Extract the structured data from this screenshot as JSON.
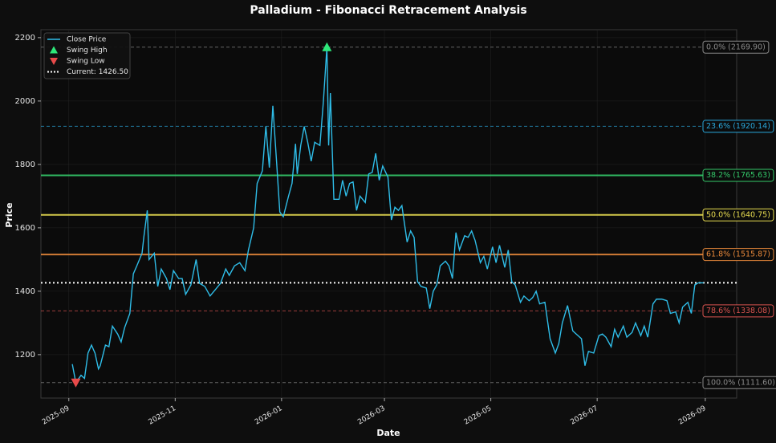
{
  "chart_data": {
    "type": "line",
    "title": "Palladium - Fibonacci Retracement Analysis",
    "x_label": "Date",
    "y_label": "Price",
    "grid": true,
    "legend": "upper left",
    "xlim": [
      "2025-08-16",
      "2026-09-19"
    ],
    "xticks": [
      {
        "value": "2025-09-01",
        "label": "2025-09"
      },
      {
        "value": "2025-11-01",
        "label": "2025-11"
      },
      {
        "value": "2026-01-01",
        "label": "2026-01"
      },
      {
        "value": "2026-03-01",
        "label": "2026-03"
      },
      {
        "value": "2026-05-01",
        "label": "2026-05"
      },
      {
        "value": "2026-07-01",
        "label": "2026-07"
      },
      {
        "value": "2026-09-01",
        "label": "2026-09"
      }
    ],
    "ylim": [
      1063,
      2225
    ],
    "yticks": [
      1200,
      1400,
      1600,
      1800,
      2000,
      2200
    ],
    "x": [
      "2025-09-03",
      "2025-09-05",
      "2025-09-08",
      "2025-09-10",
      "2025-09-12",
      "2025-09-14",
      "2025-09-16",
      "2025-09-18",
      "2025-09-19",
      "2025-09-22",
      "2025-09-24",
      "2025-09-26",
      "2025-09-29",
      "2025-10-01",
      "2025-10-03",
      "2025-10-06",
      "2025-10-08",
      "2025-10-10",
      "2025-10-13",
      "2025-10-14",
      "2025-10-16",
      "2025-10-17",
      "2025-10-20",
      "2025-10-22",
      "2025-10-24",
      "2025-10-27",
      "2025-10-29",
      "2025-10-31",
      "2025-11-03",
      "2025-11-05",
      "2025-11-07",
      "2025-11-10",
      "2025-11-13",
      "2025-11-15",
      "2025-11-18",
      "2025-11-21",
      "2025-11-24",
      "2025-11-27",
      "2025-11-30",
      "2025-12-02",
      "2025-12-05",
      "2025-12-08",
      "2025-12-11",
      "2025-12-13",
      "2025-12-16",
      "2025-12-18",
      "2025-12-21",
      "2025-12-23",
      "2025-12-25",
      "2025-12-27",
      "2025-12-29",
      "2025-12-31",
      "2026-01-02",
      "2026-01-05",
      "2026-01-07",
      "2026-01-09",
      "2026-01-10",
      "2026-01-12",
      "2026-01-14",
      "2026-01-16",
      "2026-01-18",
      "2026-01-20",
      "2026-01-23",
      "2026-01-25",
      "2026-01-27",
      "2026-01-28",
      "2026-01-29",
      "2026-01-31",
      "2026-02-03",
      "2026-02-05",
      "2026-02-07",
      "2026-02-09",
      "2026-02-11",
      "2026-02-13",
      "2026-02-15",
      "2026-02-18",
      "2026-02-20",
      "2026-02-22",
      "2026-02-24",
      "2026-02-26",
      "2026-02-28",
      "2026-03-03",
      "2026-03-05",
      "2026-03-07",
      "2026-03-09",
      "2026-03-11",
      "2026-03-14",
      "2026-03-16",
      "2026-03-18",
      "2026-03-20",
      "2026-03-22",
      "2026-03-25",
      "2026-03-27",
      "2026-03-29",
      "2026-03-31",
      "2026-04-02",
      "2026-04-05",
      "2026-04-07",
      "2026-04-09",
      "2026-04-11",
      "2026-04-13",
      "2026-04-16",
      "2026-04-18",
      "2026-04-20",
      "2026-04-22",
      "2026-04-25",
      "2026-04-27",
      "2026-04-29",
      "2026-05-02",
      "2026-05-04",
      "2026-05-06",
      "2026-05-09",
      "2026-05-11",
      "2026-05-13",
      "2026-05-15",
      "2026-05-18",
      "2026-05-20",
      "2026-05-23",
      "2026-05-25",
      "2026-05-27",
      "2026-05-29",
      "2026-06-01",
      "2026-06-04",
      "2026-06-07",
      "2026-06-09",
      "2026-06-11",
      "2026-06-14",
      "2026-06-17",
      "2026-06-19",
      "2026-06-22",
      "2026-06-24",
      "2026-06-26",
      "2026-06-29",
      "2026-07-02",
      "2026-07-04",
      "2026-07-06",
      "2026-07-09",
      "2026-07-11",
      "2026-07-13",
      "2026-07-16",
      "2026-07-18",
      "2026-07-21",
      "2026-07-23",
      "2026-07-26",
      "2026-07-28",
      "2026-07-30",
      "2026-08-02",
      "2026-08-04",
      "2026-08-07",
      "2026-08-10",
      "2026-08-12",
      "2026-08-15",
      "2026-08-17",
      "2026-08-19",
      "2026-08-22",
      "2026-08-24",
      "2026-08-26",
      "2026-08-28",
      "2026-08-31"
    ],
    "series": [
      {
        "name": "Close Price",
        "color": "#2fbde8",
        "values": [
          1170,
          1111.6,
          1135,
          1125,
          1205,
          1230,
          1205,
          1155,
          1165,
          1230,
          1225,
          1290,
          1265,
          1240,
          1285,
          1330,
          1455,
          1480,
          1520,
          1570,
          1655,
          1500,
          1520,
          1415,
          1470,
          1440,
          1405,
          1465,
          1440,
          1440,
          1390,
          1420,
          1500,
          1425,
          1415,
          1385,
          1405,
          1425,
          1470,
          1450,
          1480,
          1490,
          1465,
          1530,
          1600,
          1740,
          1780,
          1920,
          1790,
          1985,
          1820,
          1650,
          1635,
          1700,
          1740,
          1865,
          1770,
          1860,
          1920,
          1870,
          1810,
          1870,
          1860,
          2000,
          2169.9,
          1860,
          2025,
          1690,
          1690,
          1750,
          1700,
          1740,
          1745,
          1655,
          1700,
          1680,
          1770,
          1775,
          1835,
          1750,
          1795,
          1760,
          1625,
          1665,
          1655,
          1670,
          1555,
          1590,
          1570,
          1430,
          1415,
          1410,
          1345,
          1400,
          1420,
          1480,
          1495,
          1480,
          1440,
          1585,
          1530,
          1575,
          1570,
          1590,
          1560,
          1490,
          1510,
          1470,
          1540,
          1490,
          1545,
          1475,
          1530,
          1430,
          1420,
          1365,
          1385,
          1370,
          1380,
          1400,
          1360,
          1365,
          1250,
          1205,
          1235,
          1300,
          1355,
          1275,
          1265,
          1250,
          1165,
          1210,
          1205,
          1260,
          1265,
          1255,
          1225,
          1280,
          1255,
          1290,
          1255,
          1270,
          1300,
          1260,
          1290,
          1255,
          1360,
          1375,
          1375,
          1370,
          1330,
          1335,
          1300,
          1350,
          1365,
          1330,
          1420,
          1426.5,
          1426.5
        ]
      }
    ],
    "swing_high": {
      "name": "Swing High",
      "x": "2026-01-27",
      "value": 2169.9,
      "color": "#2ee87a"
    },
    "swing_low": {
      "name": "Swing Low",
      "x": "2025-09-05",
      "value": 1111.6,
      "color": "#e84a4a"
    },
    "current": {
      "name": "Current: 1426.50",
      "value": 1426.5,
      "color": "#ffffff"
    },
    "levels": [
      {
        "label": "0.0% (2169.90)",
        "value": 2169.9,
        "color": "#8a8a8a",
        "style": "dashed"
      },
      {
        "label": "23.6% (1920.14)",
        "value": 1920.14,
        "color": "#2aa8dc",
        "style": "dashed"
      },
      {
        "label": "38.2% (1765.63)",
        "value": 1765.63,
        "color": "#34c96a",
        "style": "solid"
      },
      {
        "label": "50.0% (1640.75)",
        "value": 1640.75,
        "color": "#e8dc50",
        "style": "solid"
      },
      {
        "label": "61.8% (1515.87)",
        "value": 1515.87,
        "color": "#e8883a",
        "style": "solid"
      },
      {
        "label": "78.6% (1338.08)",
        "value": 1338.08,
        "color": "#d9534f",
        "style": "dashed"
      },
      {
        "label": "100.0% (1111.60)",
        "value": 1111.6,
        "color": "#8a8a8a",
        "style": "dashed"
      }
    ]
  }
}
